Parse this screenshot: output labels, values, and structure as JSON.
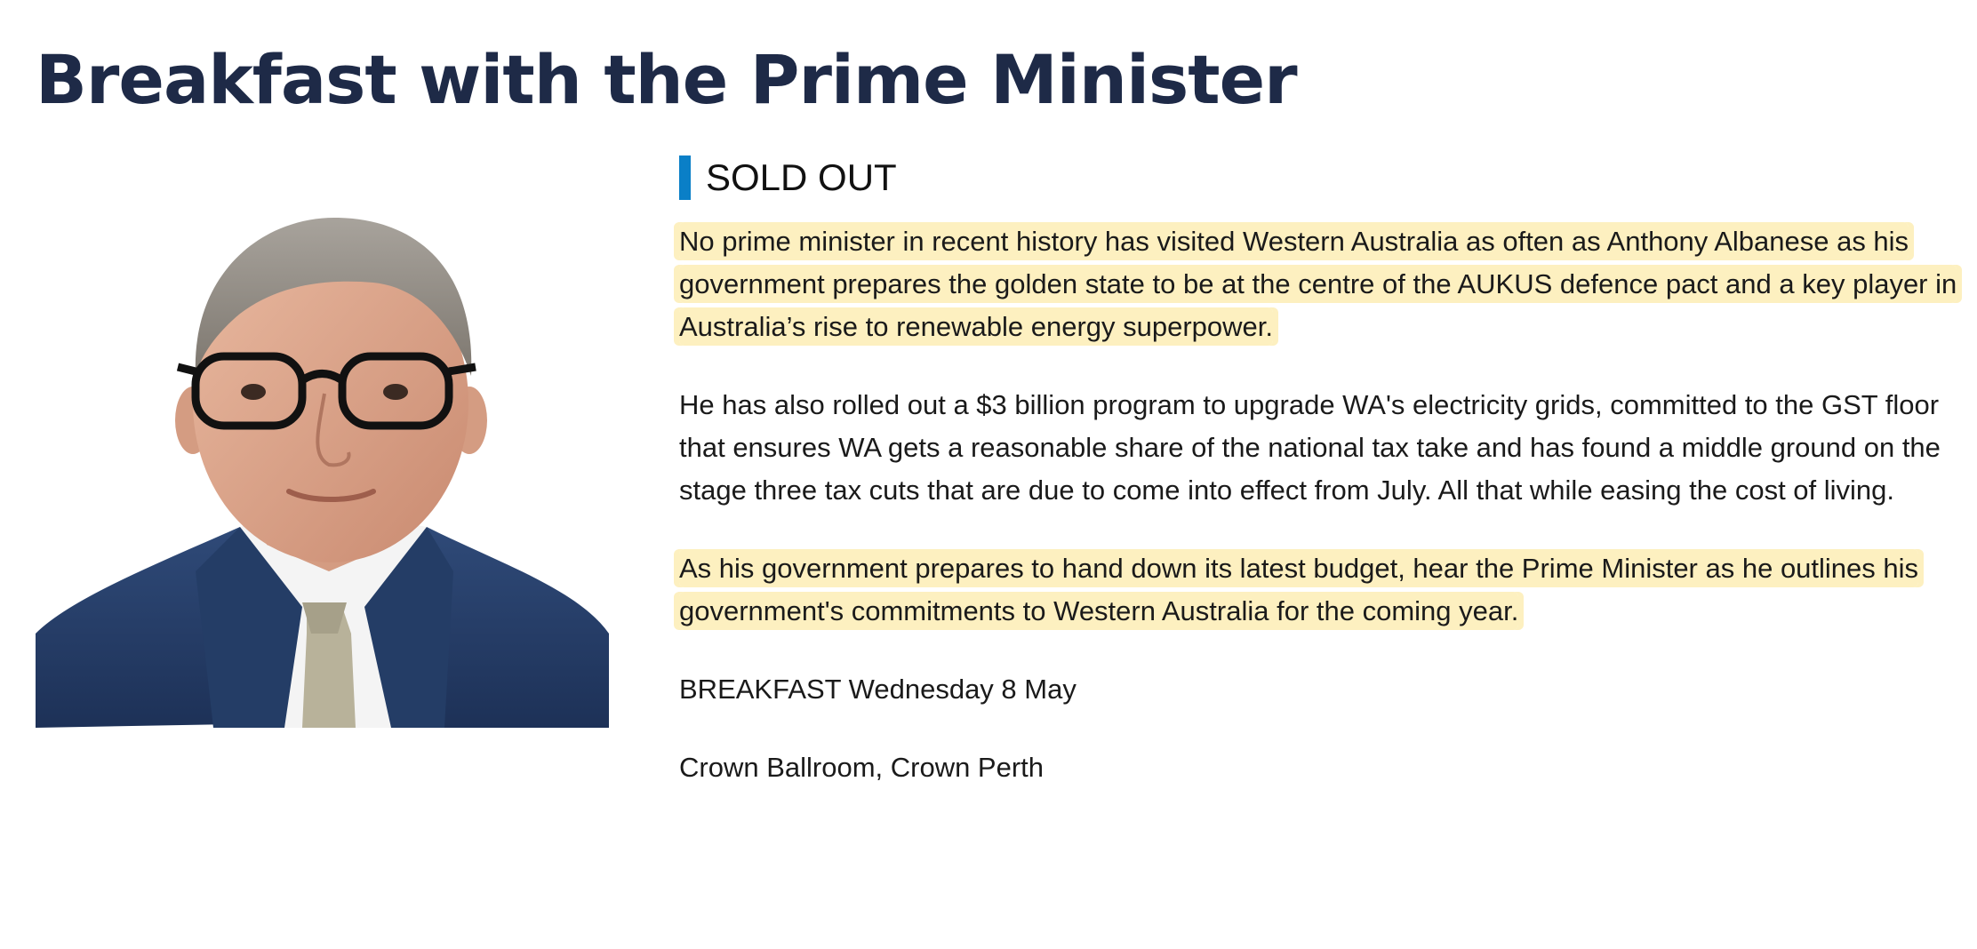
{
  "page": {
    "title": "Breakfast with the Prime Minister"
  },
  "portrait": {
    "alt": "Portrait of Anthony Albanese"
  },
  "status": {
    "label": "SOLD OUT",
    "accent_color": "#0a7fc7"
  },
  "body": {
    "paragraphs": [
      "No prime minister in recent history has visited Western Australia as often as Anthony Albanese as his government prepares the golden state to be at the centre of the AUKUS defence pact and a key player in Australia’s rise to renewable energy superpower.",
      "He has also rolled out a $3 billion program to upgrade WA's electricity grids, committed to the GST floor that ensures WA gets a reasonable share of the national tax take and has found a middle ground on the stage three tax cuts that are due to come into effect from July. All that while easing the cost of living.",
      "As his government prepares to hand down its latest budget, hear the Prime Minister as he outlines his government's commitments to Western Australia for the coming year."
    ],
    "highlight_color": "#fdf0c0"
  },
  "event": {
    "date_line": "BREAKFAST Wednesday 8 May",
    "venue_line": "Crown Ballroom, Crown Perth"
  },
  "colors": {
    "title": "#1e2a47",
    "text": "#1a1a1a"
  }
}
